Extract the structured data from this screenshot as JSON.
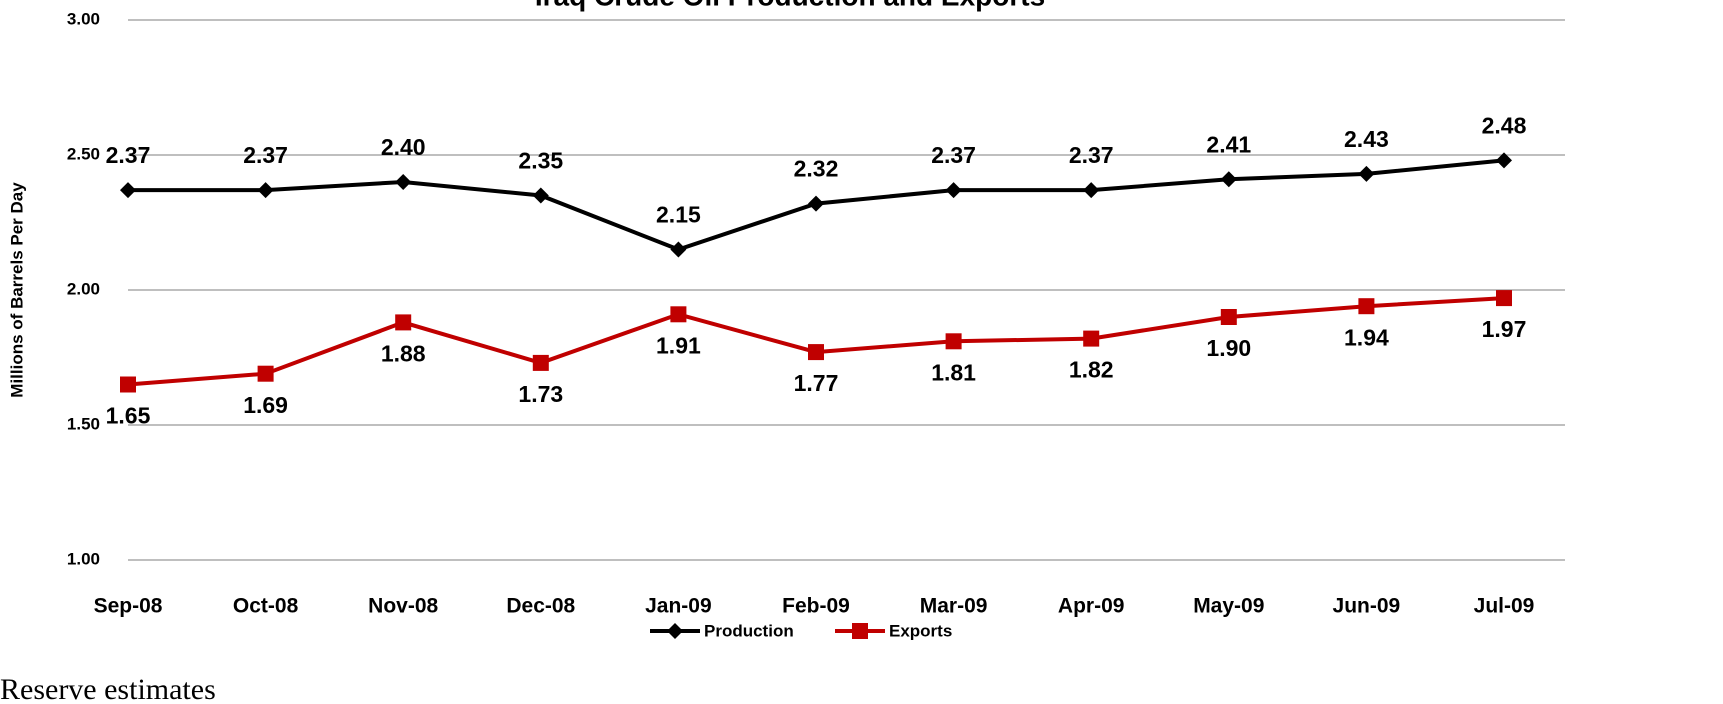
{
  "chart_data": {
    "type": "line",
    "title": "Iraq Crude Oil Production and Exports",
    "y_label": "Millions of Barrels Per Day",
    "note": "Reserve estimates",
    "categories": [
      "Sep-08",
      "Oct-08",
      "Nov-08",
      "Dec-08",
      "Jan-09",
      "Feb-09",
      "Mar-09",
      "Apr-09",
      "May-09",
      "Jun-09",
      "Jul-09"
    ],
    "series": [
      {
        "name": "Production",
        "color": "#000000",
        "marker": "diamond",
        "values": [
          2.37,
          2.37,
          2.4,
          2.35,
          2.15,
          2.32,
          2.37,
          2.37,
          2.41,
          2.43,
          2.48
        ],
        "value_labels": [
          "2.37",
          "2.37",
          "2.40",
          "2.35",
          "2.15",
          "2.32",
          "2.37",
          "2.37",
          "2.41",
          "2.43",
          "2.48"
        ]
      },
      {
        "name": "Exports",
        "color": "#c00000",
        "marker": "square",
        "values": [
          1.65,
          1.69,
          1.88,
          1.73,
          1.91,
          1.77,
          1.81,
          1.82,
          1.9,
          1.94,
          1.97
        ],
        "value_labels": [
          "1.65",
          "1.69",
          "1.88",
          "1.73",
          "1.91",
          "1.77",
          "1.81",
          "1.82",
          "1.90",
          "1.94",
          "1.97"
        ]
      }
    ],
    "ylim": [
      1,
      3
    ],
    "yticks": [
      {
        "value": 1,
        "label": "1.00"
      },
      {
        "value": 1.5,
        "label": "1.50"
      },
      {
        "value": 2,
        "label": "2.00"
      },
      {
        "value": 2.5,
        "label": "2.50"
      },
      {
        "value": 3,
        "label": "3.00"
      }
    ],
    "grid": true,
    "legend": "bottom"
  }
}
